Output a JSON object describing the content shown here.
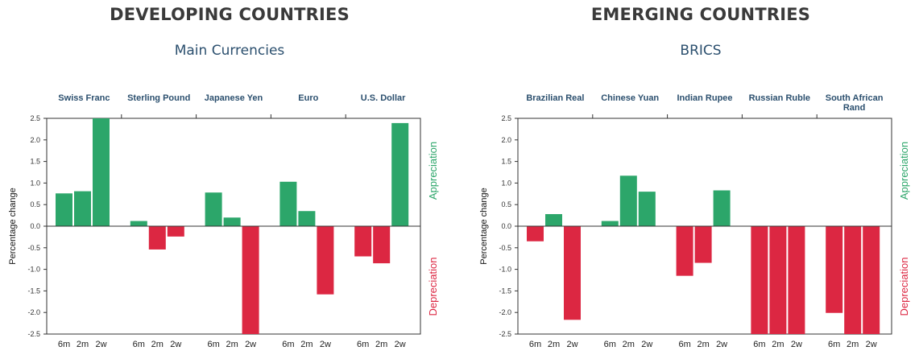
{
  "colors": {
    "appreciation": "#2ca66a",
    "depreciation": "#dc2742",
    "axis": "#333333"
  },
  "chart_data": [
    {
      "type": "bar",
      "title": "DEVELOPING COUNTRIES",
      "subtitle": "Main Currencies",
      "ylabel": "Percentage change",
      "side_labels": {
        "top": "Appreciation",
        "bottom": "Depreciation"
      },
      "ylim": [
        -2.5,
        2.5
      ],
      "yticks": [
        "2.5",
        "2.0",
        "1.5",
        "1.0",
        "0.5",
        "0.0",
        "-0.5",
        "-1.0",
        "-1.5",
        "-2.0",
        "-2.5"
      ],
      "periods": [
        "6m",
        "2m",
        "2w"
      ],
      "categories": [
        "Swiss Franc",
        "Sterling Pound",
        "Japanese Yen",
        "Euro",
        "U.S. Dollar"
      ],
      "values": [
        [
          0.76,
          0.81,
          2.5
        ],
        [
          0.12,
          -0.54,
          -0.24
        ],
        [
          0.78,
          0.2,
          -2.5
        ],
        [
          1.03,
          0.35,
          -1.58
        ],
        [
          -0.7,
          -0.86,
          2.39
        ]
      ]
    },
    {
      "type": "bar",
      "title": "EMERGING COUNTRIES",
      "subtitle": "BRICS",
      "ylabel": "Percentage change",
      "side_labels": {
        "top": "Appreciation",
        "bottom": "Depreciation"
      },
      "ylim": [
        -2.5,
        2.5
      ],
      "yticks": [
        "2.5",
        "2.0",
        "1.5",
        "1.0",
        "0.5",
        "0.0",
        "-0.5",
        "-1.0",
        "-1.5",
        "-2.0",
        "-2.5"
      ],
      "periods": [
        "6m",
        "2m",
        "2w"
      ],
      "categories": [
        "Brazilian Real",
        "Chinese Yuan",
        "Indian Rupee",
        "Russian Ruble",
        "South African Rand"
      ],
      "values": [
        [
          -0.35,
          0.28,
          -2.17
        ],
        [
          0.12,
          1.17,
          0.8
        ],
        [
          -1.15,
          -0.85,
          0.83
        ],
        [
          -2.5,
          -2.5,
          -2.5
        ],
        [
          -2.01,
          -2.5,
          -2.5
        ]
      ]
    }
  ]
}
